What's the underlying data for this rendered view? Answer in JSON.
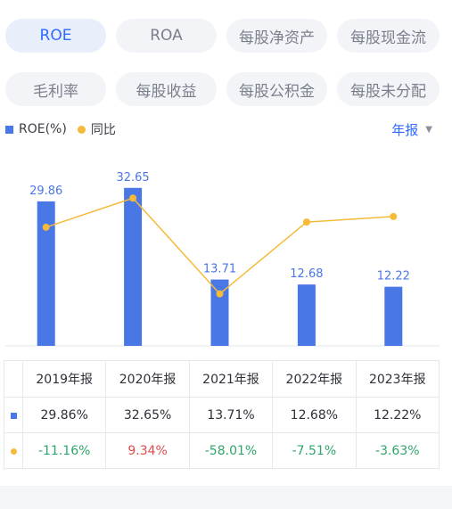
{
  "tabs": [
    {
      "label": "ROE",
      "active": true
    },
    {
      "label": "ROA",
      "active": false
    },
    {
      "label": "每股净资产",
      "active": false
    },
    {
      "label": "每股现金流",
      "active": false
    },
    {
      "label": "毛利率",
      "active": false
    },
    {
      "label": "每股收益",
      "active": false
    },
    {
      "label": "每股公积金",
      "active": false
    },
    {
      "label": "每股未分配",
      "active": false
    }
  ],
  "legend": {
    "series1": "ROE(%)",
    "series2": "同比"
  },
  "period": {
    "label": "年报",
    "caret": "▼"
  },
  "colors": {
    "bar": "#4a77e6",
    "line": "#f5ba3a",
    "accent": "#2f6bff",
    "negative": "#2ea66a",
    "positive": "#e24a4a"
  },
  "chart_data": {
    "type": "bar",
    "categories": [
      "2019年报",
      "2020年报",
      "2021年报",
      "2022年报",
      "2023年报"
    ],
    "series": [
      {
        "name": "ROE(%)",
        "type": "bar",
        "values": [
          29.86,
          32.65,
          13.71,
          12.68,
          12.22
        ]
      },
      {
        "name": "同比",
        "type": "line",
        "values": [
          -11.16,
          9.34,
          -58.01,
          -7.51,
          -3.63
        ]
      }
    ],
    "bar_labels": [
      "29.86",
      "32.65",
      "13.71",
      "12.68",
      "12.22"
    ],
    "legend_position": "top-left",
    "grid": false
  },
  "table": {
    "headers": [
      "2019年报",
      "2020年报",
      "2021年报",
      "2022年报",
      "2023年报"
    ],
    "roe_row": [
      "29.86%",
      "32.65%",
      "13.71%",
      "12.68%",
      "12.22%"
    ],
    "yoy_row": [
      "-11.16%",
      "9.34%",
      "-58.01%",
      "-7.51%",
      "-3.63%"
    ]
  }
}
